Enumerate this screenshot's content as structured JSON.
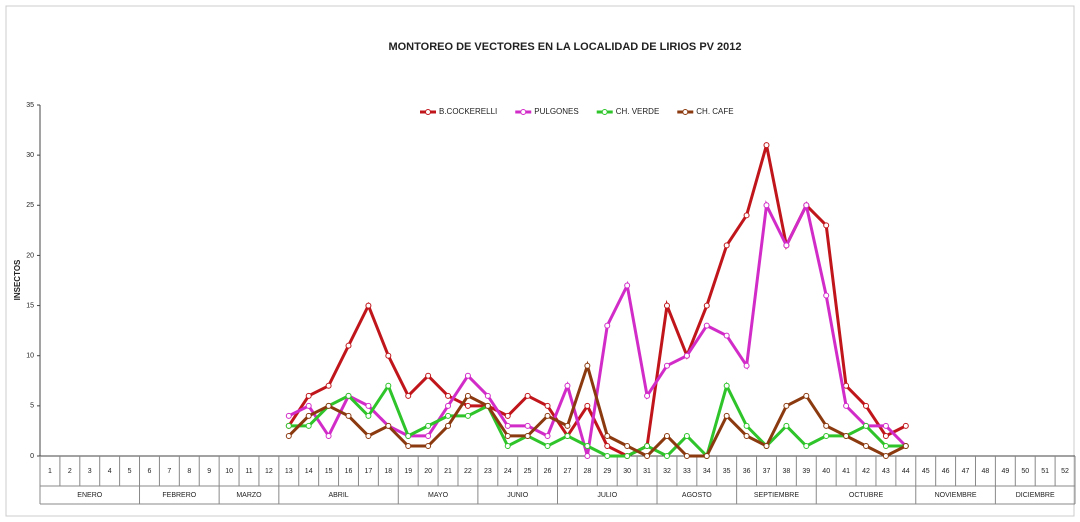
{
  "chart_data": {
    "type": "line",
    "title": "MONTOREO DE VECTORES  EN LA LOCALIDAD DE LIRIOS PV 2012",
    "y_label": "INSECTOS",
    "x": [
      1,
      2,
      3,
      4,
      5,
      6,
      7,
      8,
      9,
      10,
      11,
      12,
      13,
      14,
      15,
      16,
      17,
      18,
      19,
      20,
      21,
      22,
      23,
      24,
      25,
      26,
      27,
      28,
      29,
      30,
      31,
      32,
      33,
      34,
      35,
      36,
      37,
      38,
      39,
      40,
      41,
      42,
      43,
      44,
      45,
      46,
      47,
      48,
      49,
      50,
      51,
      52
    ],
    "month_groups": [
      {
        "label": "ENERO",
        "from": 1,
        "to": 5
      },
      {
        "label": "FEBRERO",
        "from": 6,
        "to": 9
      },
      {
        "label": "MARZO",
        "from": 10,
        "to": 12
      },
      {
        "label": "ABRIL",
        "from": 13,
        "to": 18
      },
      {
        "label": "MAYO",
        "from": 19,
        "to": 22
      },
      {
        "label": "JUNIO",
        "from": 23,
        "to": 26
      },
      {
        "label": "JULIO",
        "from": 27,
        "to": 31
      },
      {
        "label": "AGOSTO",
        "from": 32,
        "to": 35
      },
      {
        "label": "SEPTIEMBRE",
        "from": 36,
        "to": 39
      },
      {
        "label": "OCTUBRE",
        "from": 40,
        "to": 44
      },
      {
        "label": "NOVIEMBRE",
        "from": 45,
        "to": 48
      },
      {
        "label": "DICIEMBRE",
        "from": 49,
        "to": 52
      }
    ],
    "ylim": [
      0,
      35
    ],
    "yticks": [
      0,
      5,
      10,
      15,
      20,
      25,
      30,
      35
    ],
    "series": [
      {
        "name": "B.COCKERELLI",
        "color": "#c0161b",
        "values": [
          null,
          null,
          null,
          null,
          null,
          null,
          null,
          null,
          null,
          null,
          null,
          null,
          3,
          6,
          7,
          11,
          15,
          10,
          6,
          8,
          6,
          5,
          5,
          4,
          6,
          5,
          2,
          5,
          1,
          0,
          1,
          15,
          10,
          15,
          21,
          24,
          31,
          21,
          25,
          23,
          7,
          5,
          2,
          3,
          null,
          null,
          null,
          null,
          null,
          null,
          null,
          null
        ]
      },
      {
        "name": "PULGONES",
        "color": "#d22cc8",
        "values": [
          null,
          null,
          null,
          null,
          null,
          null,
          null,
          null,
          null,
          null,
          null,
          null,
          4,
          5,
          2,
          6,
          5,
          3,
          2,
          2,
          5,
          8,
          6,
          3,
          3,
          2,
          7,
          0,
          13,
          17,
          6,
          9,
          10,
          13,
          12,
          9,
          25,
          21,
          25,
          16,
          5,
          3,
          3,
          1,
          null,
          null,
          null,
          null,
          null,
          null,
          null,
          null
        ]
      },
      {
        "name": "CH. VERDE",
        "color": "#2ec42a",
        "values": [
          null,
          null,
          null,
          null,
          null,
          null,
          null,
          null,
          null,
          null,
          null,
          null,
          3,
          3,
          5,
          6,
          4,
          7,
          2,
          3,
          4,
          4,
          5,
          1,
          2,
          1,
          2,
          1,
          0,
          0,
          1,
          0,
          2,
          0,
          7,
          3,
          1,
          3,
          1,
          2,
          2,
          3,
          1,
          1,
          null,
          null,
          null,
          null,
          null,
          null,
          null,
          null
        ]
      },
      {
        "name": "CH. CAFE",
        "color": "#8b3a10",
        "values": [
          null,
          null,
          null,
          null,
          null,
          null,
          null,
          null,
          null,
          null,
          null,
          null,
          2,
          4,
          5,
          4,
          2,
          3,
          1,
          1,
          3,
          6,
          5,
          2,
          2,
          4,
          3,
          9,
          2,
          1,
          0,
          2,
          0,
          0,
          4,
          2,
          1,
          5,
          6,
          3,
          2,
          1,
          0,
          1,
          null,
          null,
          null,
          null,
          null,
          null,
          null,
          null
        ]
      }
    ]
  }
}
